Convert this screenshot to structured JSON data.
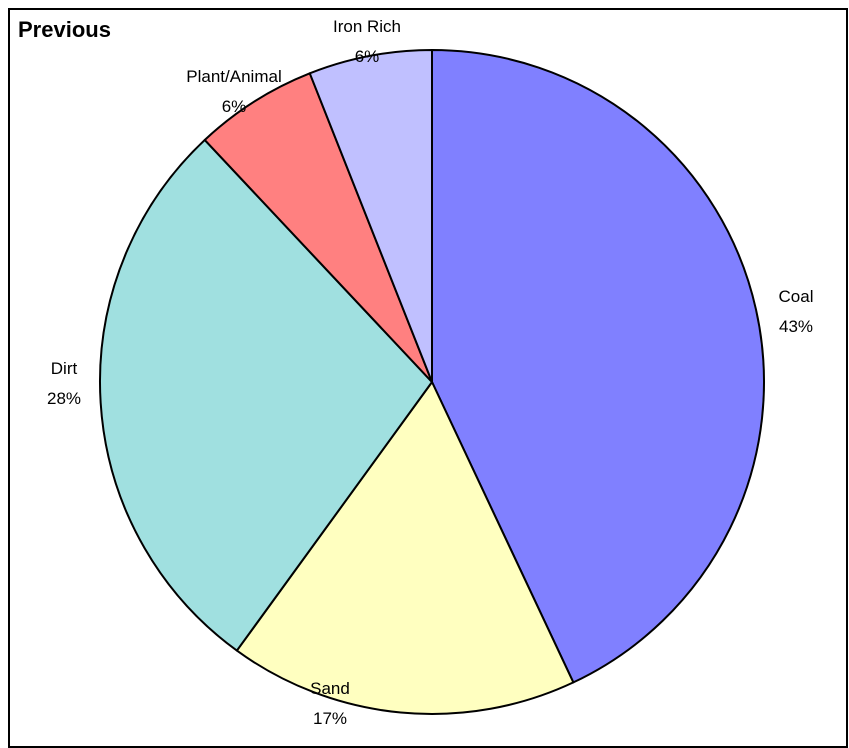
{
  "chart_data": {
    "type": "pie",
    "title": "Previous",
    "start_angle_deg": 0,
    "direction": "clockwise",
    "slices": [
      {
        "label": "Coal",
        "percent_label": "43%",
        "value": 43,
        "color": "#8080ff"
      },
      {
        "label": "Sand",
        "percent_label": "17%",
        "value": 17,
        "color": "#ffffc0"
      },
      {
        "label": "Dirt",
        "percent_label": "28%",
        "value": 28,
        "color": "#a0e0e0"
      },
      {
        "label": "Plant/Animal",
        "percent_label": "6%",
        "value": 6,
        "color": "#ff8080"
      },
      {
        "label": "Iron Rich",
        "percent_label": "6%",
        "value": 6,
        "color": "#c0c0ff"
      }
    ],
    "legend": "none"
  }
}
